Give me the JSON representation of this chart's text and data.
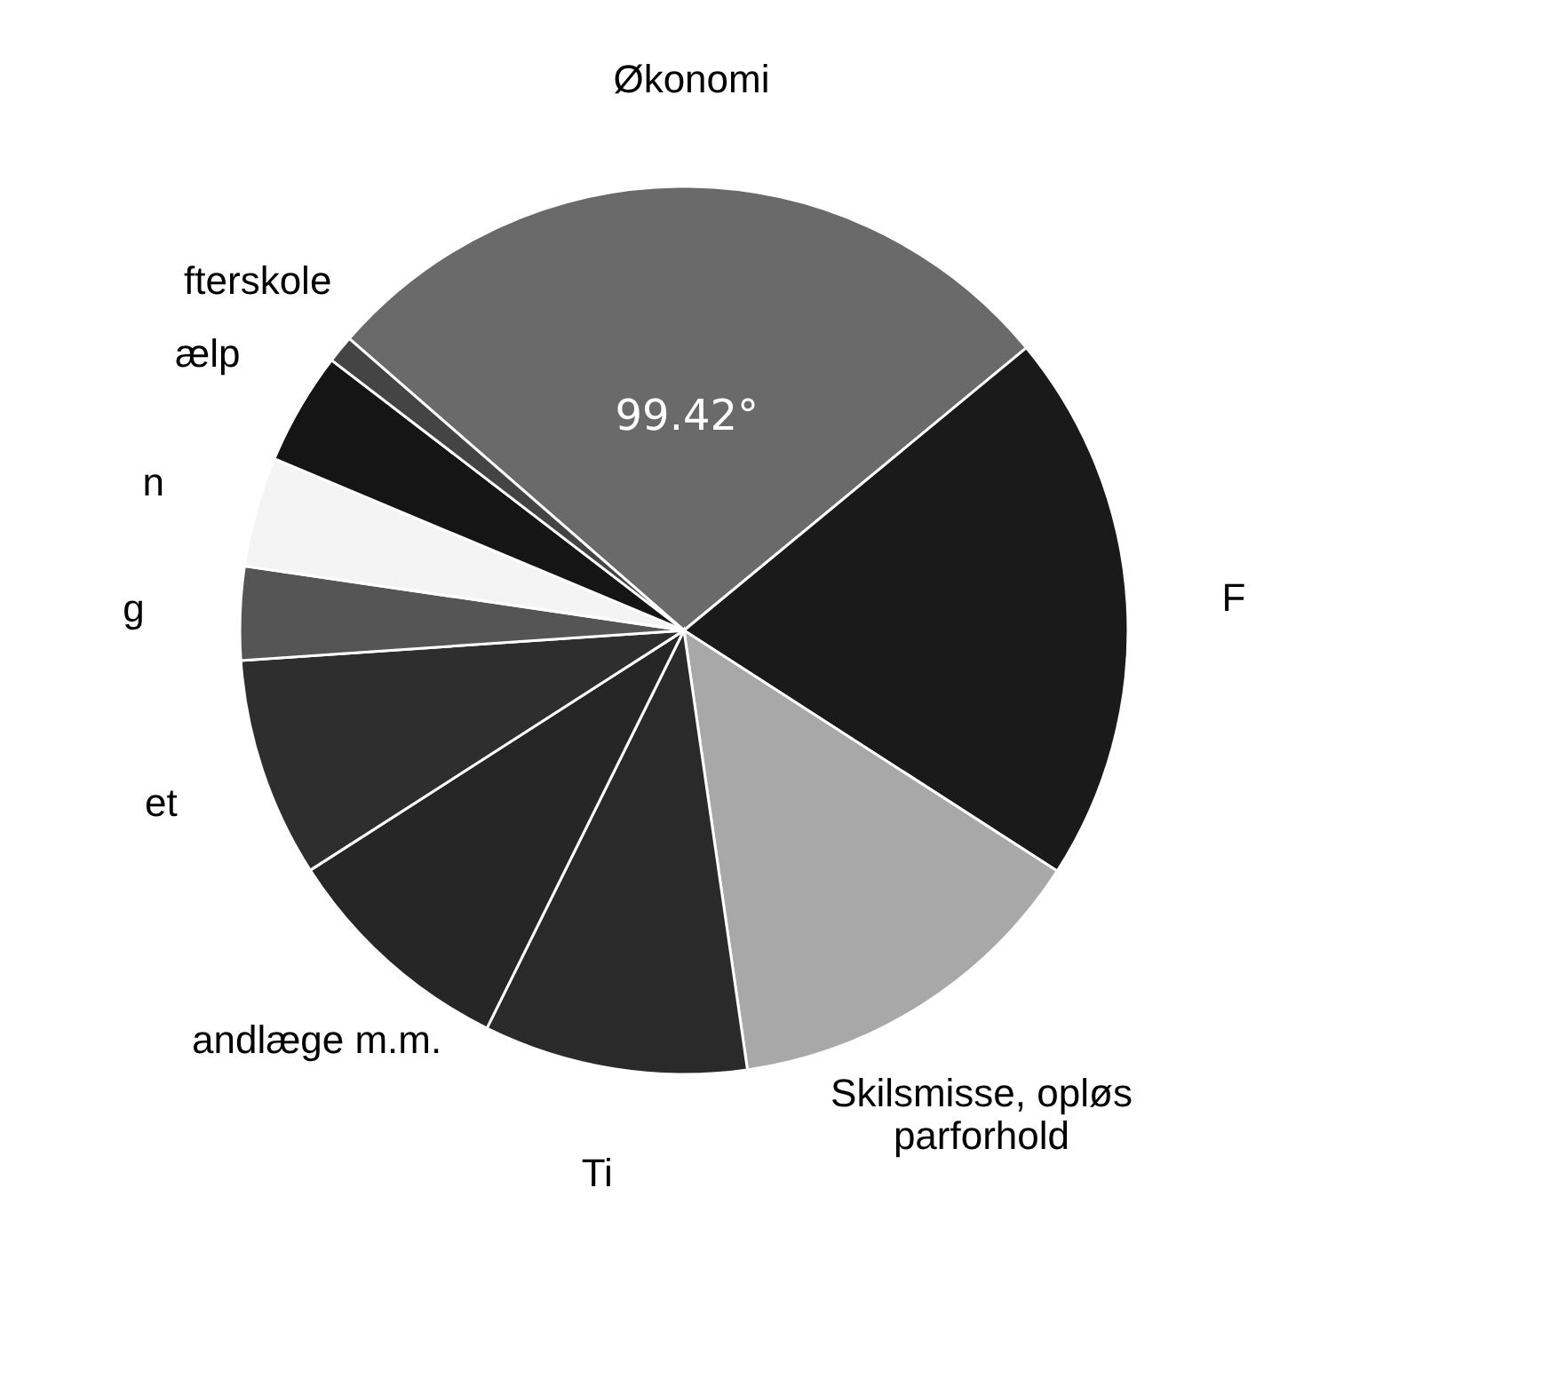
{
  "chart_data": {
    "type": "pie",
    "categories": [
      "Økonomi",
      "F",
      "Skilsmisse, opløs\nparforhold",
      "Ti",
      "andlæge m.m.",
      "et",
      "g",
      "n",
      "ælp",
      "fterskole"
    ],
    "values": [
      27.6,
      20.1,
      13.6,
      9.6,
      8.6,
      8.0,
      3.4,
      4.0,
      4.1,
      1.0
    ],
    "colors": [
      "#6a6a6a",
      "#1a1a1a",
      "#a8a8a8",
      "#2a2a2a",
      "#262626",
      "#2e2e2e",
      "#555555",
      "#f4f4f4",
      "#151515",
      "#444444"
    ],
    "annotations": [
      "99.42°"
    ],
    "legend": false
  }
}
